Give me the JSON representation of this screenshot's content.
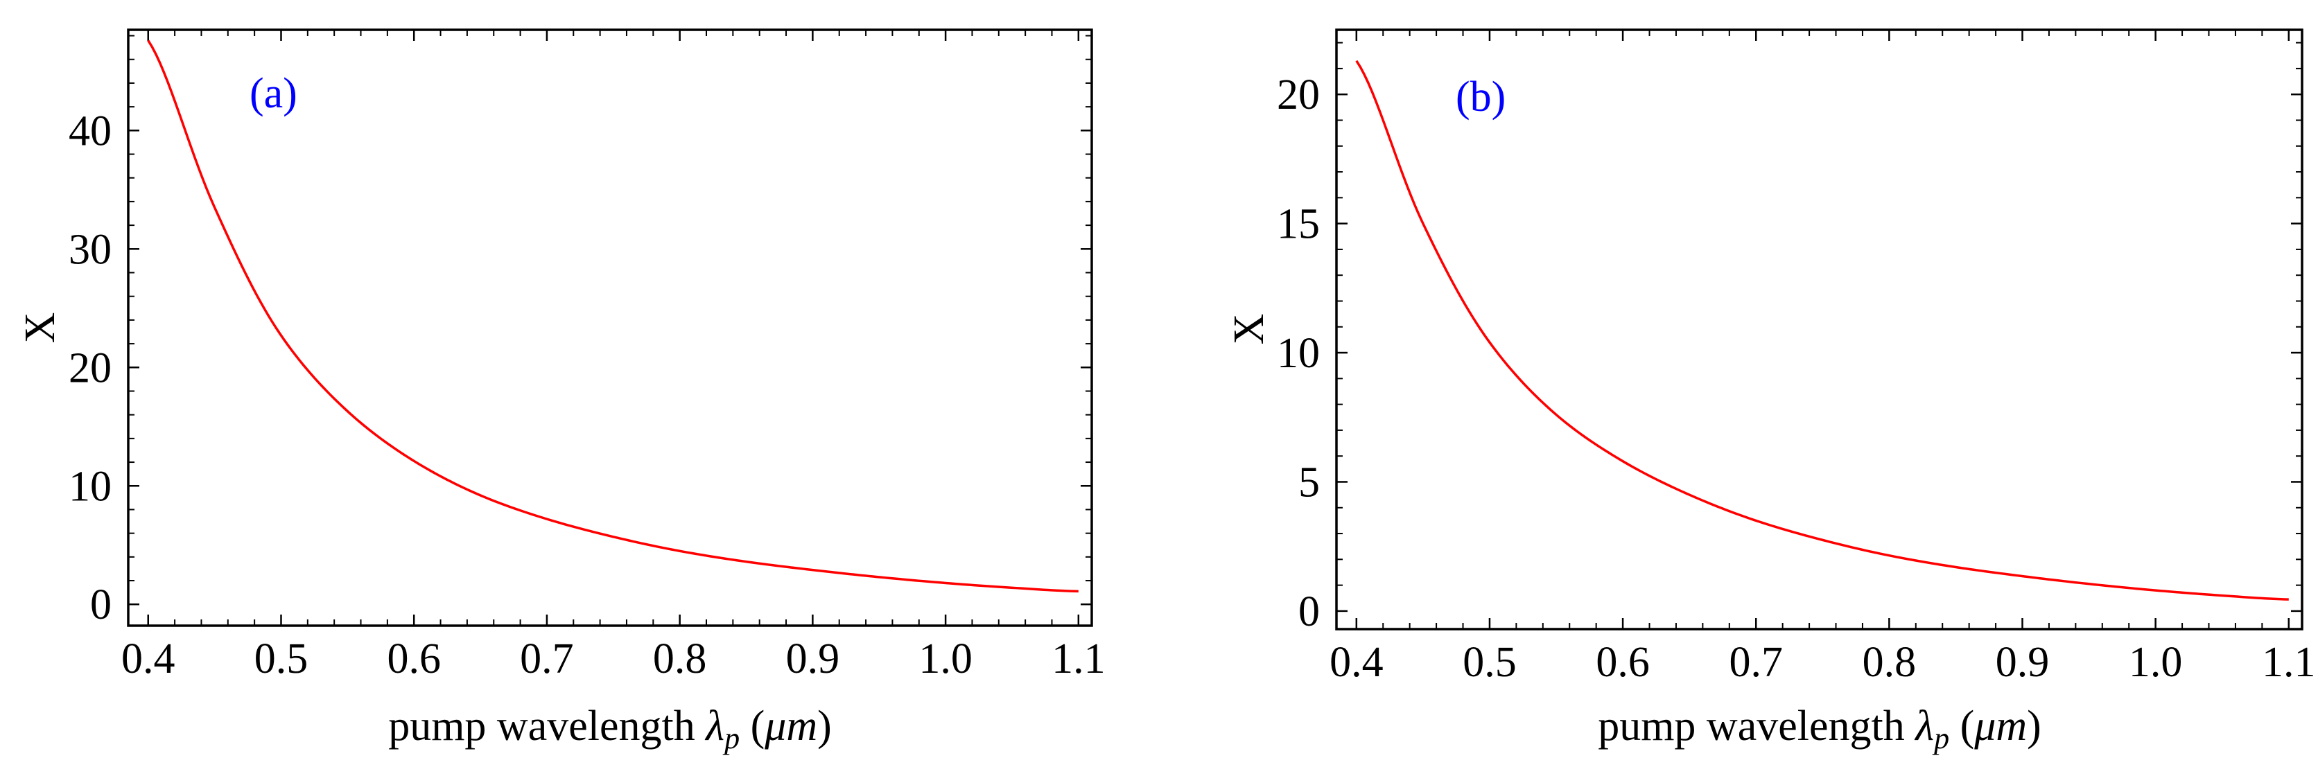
{
  "chart_data": [
    {
      "type": "line",
      "panel_label": "(a)",
      "xlabel_prefix": "pump wavelength ",
      "xlabel_symbol": "λ",
      "xlabel_subscript": "p",
      "xlabel_unit_open": " (",
      "xlabel_unit": "μm",
      "xlabel_unit_close": ")",
      "ylabel": "X",
      "xlim": [
        0.385,
        1.11
      ],
      "ylim": [
        -1.8,
        48.5
      ],
      "xticks": [
        0.4,
        0.5,
        0.6,
        0.7,
        0.8,
        0.9,
        1.0,
        1.1
      ],
      "xtick_labels": [
        "0.4",
        "0.5",
        "0.6",
        "0.7",
        "0.8",
        "0.9",
        "1.0",
        "1.1"
      ],
      "yticks": [
        0,
        10,
        20,
        30,
        40
      ],
      "ytick_labels": [
        "0",
        "10",
        "20",
        "30",
        "40"
      ],
      "series": [
        {
          "name": "X",
          "color": "#ff0000",
          "x": [
            0.4,
            0.45,
            0.5,
            0.55,
            0.6,
            0.65,
            0.7,
            0.75,
            0.8,
            0.85,
            0.9,
            0.95,
            1.0,
            1.05,
            1.1
          ],
          "y": [
            47.6,
            33.5,
            22.7,
            16.3,
            12.1,
            9.2,
            7.2,
            5.7,
            4.5,
            3.6,
            2.9,
            2.3,
            1.8,
            1.4,
            1.1
          ]
        }
      ]
    },
    {
      "type": "line",
      "panel_label": "(b)",
      "xlabel_prefix": "pump wavelength ",
      "xlabel_symbol": "λ",
      "xlabel_subscript": "p",
      "xlabel_unit_open": " (",
      "xlabel_unit": "μm",
      "xlabel_unit_close": ")",
      "ylabel": "X",
      "xlim": [
        0.385,
        1.11
      ],
      "ylim": [
        -0.7,
        22.5
      ],
      "xticks": [
        0.4,
        0.5,
        0.6,
        0.7,
        0.8,
        0.9,
        1.0,
        1.1
      ],
      "xtick_labels": [
        "0.4",
        "0.5",
        "0.6",
        "0.7",
        "0.8",
        "0.9",
        "1.0",
        "1.1"
      ],
      "yticks": [
        0,
        5,
        10,
        15,
        20
      ],
      "ytick_labels": [
        "0",
        "5",
        "10",
        "15",
        "20"
      ],
      "series": [
        {
          "name": "X",
          "color": "#ff0000",
          "x": [
            0.4,
            0.45,
            0.5,
            0.55,
            0.6,
            0.65,
            0.7,
            0.75,
            0.8,
            0.85,
            0.9,
            0.95,
            1.0,
            1.05,
            1.1
          ],
          "y": [
            21.3,
            15.0,
            10.4,
            7.6,
            5.8,
            4.5,
            3.5,
            2.75,
            2.15,
            1.7,
            1.35,
            1.05,
            0.8,
            0.6,
            0.45
          ]
        }
      ]
    }
  ],
  "colors": {
    "panel_label": "#0000ff",
    "curve": "#ff0000",
    "axis": "#000000"
  }
}
